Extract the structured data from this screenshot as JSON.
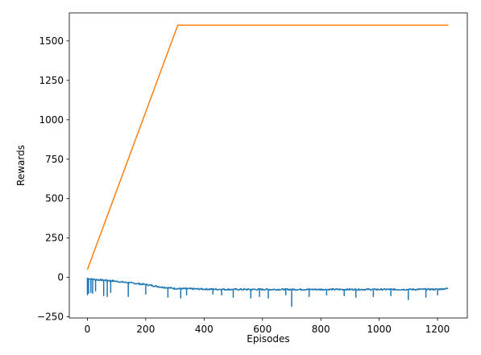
{
  "chart_data": {
    "type": "line",
    "title": "",
    "xlabel": "Episodes",
    "ylabel": "Rewards",
    "xlim": [
      -62,
      1302
    ],
    "ylim": [
      -257,
      1678
    ],
    "x_ticks": [
      0,
      200,
      400,
      600,
      800,
      1000,
      1200
    ],
    "y_ticks": [
      -250,
      0,
      250,
      500,
      750,
      1000,
      1250,
      1500
    ],
    "grid": false,
    "legend": "none",
    "colors": {
      "series_1": "#1f77b4",
      "series_2": "#ff7f0e",
      "axes": "#000000",
      "background": "#ffffff"
    },
    "series": [
      {
        "color": "#1f77b4",
        "kind": "noisy",
        "x": [
          0,
          5,
          10,
          20,
          40,
          60,
          80,
          100,
          150,
          200,
          250,
          300,
          350,
          400,
          500,
          600,
          700,
          800,
          900,
          1000,
          1100,
          1200,
          1237
        ],
        "y": [
          -5,
          -8,
          -10,
          -12,
          -15,
          -18,
          -20,
          -25,
          -35,
          -45,
          -60,
          -70,
          -72,
          -74,
          -76,
          -76,
          -76,
          -76,
          -76,
          -76,
          -76,
          -75,
          -70
        ],
        "dips": [
          [
            0,
            -110
          ],
          [
            3,
            -100
          ],
          [
            12,
            -95
          ],
          [
            18,
            -100
          ],
          [
            28,
            -85
          ],
          [
            55,
            -115
          ],
          [
            68,
            -120
          ],
          [
            80,
            -95
          ],
          [
            140,
            -120
          ],
          [
            200,
            -105
          ],
          [
            275,
            -125
          ],
          [
            320,
            -130
          ],
          [
            340,
            -110
          ],
          [
            430,
            -105
          ],
          [
            460,
            -110
          ],
          [
            500,
            -125
          ],
          [
            560,
            -130
          ],
          [
            590,
            -120
          ],
          [
            620,
            -130
          ],
          [
            680,
            -110
          ],
          [
            700,
            -183
          ],
          [
            760,
            -120
          ],
          [
            820,
            -110
          ],
          [
            880,
            -115
          ],
          [
            920,
            -125
          ],
          [
            980,
            -120
          ],
          [
            1040,
            -115
          ],
          [
            1100,
            -140
          ],
          [
            1160,
            -125
          ],
          [
            1200,
            -110
          ]
        ]
      },
      {
        "color": "#ff7f0e",
        "kind": "line",
        "x": [
          0,
          310,
          1237
        ],
        "y": [
          50,
          1600,
          1600
        ]
      }
    ]
  }
}
